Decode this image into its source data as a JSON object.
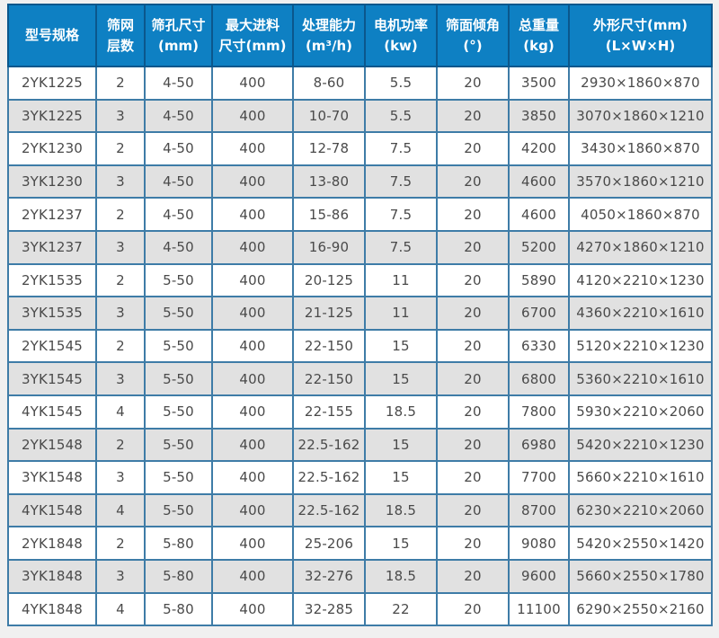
{
  "colors": {
    "page_background": "#f0f0f0",
    "header_background": "#0e80c3",
    "header_border": "#0b578c",
    "header_text": "#ffffff",
    "body_border": "#3e7ca7",
    "row_bg_odd": "#ffffff",
    "row_bg_even": "#e1e1e1",
    "cell_text": "#4a4a4a"
  },
  "chart_data": {
    "type": "table",
    "columns": [
      {
        "key": "model-spec",
        "line1": "型号规格",
        "line2": ""
      },
      {
        "key": "screen-layers",
        "line1": "筛网",
        "line2": "层数"
      },
      {
        "key": "mesh-size",
        "line1": "筛孔尺寸",
        "line2": "(mm)"
      },
      {
        "key": "max-feed-size",
        "line1": "最大进料",
        "line2": "尺寸(mm)"
      },
      {
        "key": "capacity",
        "line1": "处理能力",
        "line2": "(m³/h)"
      },
      {
        "key": "motor-power",
        "line1": "电机功率",
        "line2": "(kw)"
      },
      {
        "key": "screen-angle",
        "line1": "筛面倾角",
        "line2": "(°)"
      },
      {
        "key": "total-weight",
        "line1": "总重量",
        "line2": "(kg)"
      },
      {
        "key": "overall-dimensions",
        "line1": "外形尺寸(mm)",
        "line2": "(L×W×H)"
      }
    ],
    "rows": [
      [
        "2YK1225",
        "2",
        "4-50",
        "400",
        "8-60",
        "5.5",
        "20",
        "3500",
        "2930×1860×870"
      ],
      [
        "3YK1225",
        "3",
        "4-50",
        "400",
        "10-70",
        "5.5",
        "20",
        "3850",
        "3070×1860×1210"
      ],
      [
        "2YK1230",
        "2",
        "4-50",
        "400",
        "12-78",
        "7.5",
        "20",
        "4200",
        "3430×1860×870"
      ],
      [
        "3YK1230",
        "3",
        "4-50",
        "400",
        "13-80",
        "7.5",
        "20",
        "4600",
        "3570×1860×1210"
      ],
      [
        "2YK1237",
        "2",
        "4-50",
        "400",
        "15-86",
        "7.5",
        "20",
        "4600",
        "4050×1860×870"
      ],
      [
        "3YK1237",
        "3",
        "4-50",
        "400",
        "16-90",
        "7.5",
        "20",
        "5200",
        "4270×1860×1210"
      ],
      [
        "2YK1535",
        "2",
        "5-50",
        "400",
        "20-125",
        "11",
        "20",
        "5890",
        "4120×2210×1230"
      ],
      [
        "3YK1535",
        "3",
        "5-50",
        "400",
        "21-125",
        "11",
        "20",
        "6700",
        "4360×2210×1610"
      ],
      [
        "2YK1545",
        "2",
        "5-50",
        "400",
        "22-150",
        "15",
        "20",
        "6330",
        "5120×2210×1230"
      ],
      [
        "3YK1545",
        "3",
        "5-50",
        "400",
        "22-150",
        "15",
        "20",
        "6800",
        "5360×2210×1610"
      ],
      [
        "4YK1545",
        "4",
        "5-50",
        "400",
        "22-155",
        "18.5",
        "20",
        "7800",
        "5930×2210×2060"
      ],
      [
        "2YK1548",
        "2",
        "5-50",
        "400",
        "22.5-162",
        "15",
        "20",
        "6980",
        "5420×2210×1230"
      ],
      [
        "3YK1548",
        "3",
        "5-50",
        "400",
        "22.5-162",
        "15",
        "20",
        "7700",
        "5660×2210×1610"
      ],
      [
        "4YK1548",
        "4",
        "5-50",
        "400",
        "22.5-162",
        "18.5",
        "20",
        "8700",
        "6230×2210×2060"
      ],
      [
        "2YK1848",
        "2",
        "5-80",
        "400",
        "25-206",
        "15",
        "20",
        "9080",
        "5420×2550×1420"
      ],
      [
        "3YK1848",
        "3",
        "5-80",
        "400",
        "32-276",
        "18.5",
        "20",
        "9600",
        "5660×2550×1780"
      ],
      [
        "4YK1848",
        "4",
        "5-80",
        "400",
        "32-285",
        "22",
        "20",
        "11100",
        "6290×2550×2160"
      ]
    ]
  }
}
